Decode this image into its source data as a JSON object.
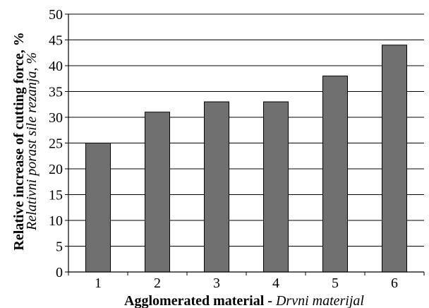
{
  "chart_data": {
    "type": "bar",
    "categories": [
      "1",
      "2",
      "3",
      "4",
      "5",
      "6"
    ],
    "values": [
      25,
      31,
      33,
      33,
      38,
      44
    ],
    "ylim": [
      0,
      50
    ],
    "yticks": [
      0,
      5,
      10,
      15,
      20,
      25,
      30,
      35,
      40,
      45,
      50
    ],
    "grid": true,
    "bar_color": "#707070",
    "xlabel": {
      "bold_part": "Agglomerated material",
      "separator": " - ",
      "italic_part": "Drvni materijal"
    },
    "ylabel": {
      "line1": "Relative increase of cutting force, %",
      "line2": "Relativni porast sile rezanja, %"
    }
  }
}
